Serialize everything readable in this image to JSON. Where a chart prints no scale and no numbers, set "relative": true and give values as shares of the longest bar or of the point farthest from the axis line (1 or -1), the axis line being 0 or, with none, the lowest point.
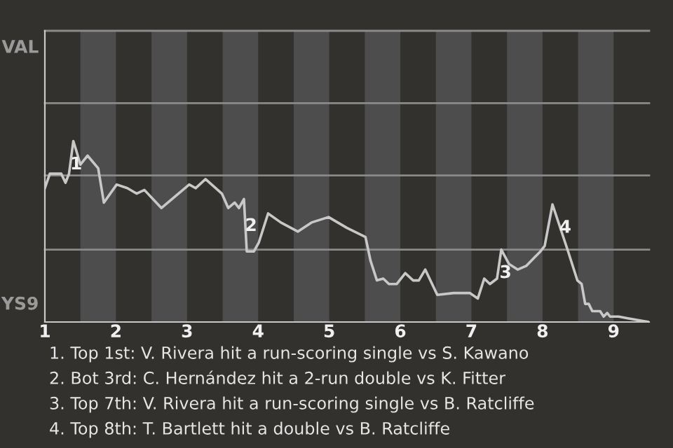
{
  "chart_data": {
    "type": "line",
    "relative": true,
    "x": [
      1.0,
      1.07,
      1.23,
      1.29,
      1.34,
      1.4,
      1.44,
      1.5,
      1.6,
      1.75,
      1.83,
      2.01,
      2.16,
      2.29,
      2.4,
      2.64,
      3.03,
      3.12,
      3.26,
      3.49,
      3.58,
      3.67,
      3.73,
      3.8,
      3.84,
      3.94,
      4.01,
      4.14,
      4.32,
      4.56,
      4.75,
      4.99,
      5.25,
      5.51,
      5.58,
      5.67,
      5.76,
      5.84,
      5.95,
      6.07,
      6.18,
      6.26,
      6.35,
      6.52,
      6.75,
      6.98,
      7.09,
      7.18,
      7.26,
      7.36,
      7.42,
      7.53,
      7.65,
      7.77,
      7.97,
      8.03,
      8.14,
      8.36,
      8.49,
      8.55,
      8.6,
      8.65,
      8.7,
      8.81,
      8.86,
      8.91,
      8.95,
      9.07,
      9.2,
      9.49
    ],
    "series": [
      {
        "color": "#c8c8c8",
        "values": [
          0.74,
          0.82,
          0.82,
          0.77,
          0.82,
          1,
          0.95,
          0.87,
          0.92,
          0.85,
          0.66,
          0.76,
          0.74,
          0.71,
          0.73,
          0.63,
          0.76,
          0.74,
          0.79,
          0.71,
          0.63,
          0.66,
          0.63,
          0.68,
          0.39,
          0.39,
          0.44,
          0.6,
          0.55,
          0.5,
          0.55,
          0.58,
          0.52,
          0.47,
          0.34,
          0.23,
          0.24,
          0.21,
          0.21,
          0.27,
          0.23,
          0.23,
          0.29,
          0.15,
          0.16,
          0.16,
          0.13,
          0.24,
          0.21,
          0.24,
          0.4,
          0.32,
          0.29,
          0.31,
          0.39,
          0.42,
          0.65,
          0.39,
          0.23,
          0.21,
          0.1,
          0.1,
          0.06,
          0.06,
          0.03,
          0.05,
          0.03,
          0.03,
          0.02,
          0
        ]
      }
    ],
    "xlim": [
      1,
      9.5
    ],
    "xticks": [
      1,
      2,
      3,
      4,
      5,
      6,
      7,
      8,
      9
    ],
    "ref_lines": [
      {
        "axis": "y",
        "value": 0.4,
        "color": "#8a8a8a"
      },
      {
        "axis": "y",
        "value": 0.81,
        "color": "#8a8a8a"
      },
      {
        "axis": "y",
        "value": 1.21,
        "color": "#8a8a8a"
      },
      {
        "axis": "y",
        "value": 1.61,
        "color": "#8a8a8a"
      }
    ],
    "bands": [
      {
        "axis": "x",
        "from": 1.5,
        "to": 2,
        "color": "#4d4d4d"
      },
      {
        "axis": "x",
        "from": 2.5,
        "to": 3,
        "color": "#4d4d4d"
      },
      {
        "axis": "x",
        "from": 3.5,
        "to": 4,
        "color": "#4d4d4d"
      },
      {
        "axis": "x",
        "from": 4.5,
        "to": 5,
        "color": "#4d4d4d"
      },
      {
        "axis": "x",
        "from": 5.5,
        "to": 6,
        "color": "#4d4d4d"
      },
      {
        "axis": "x",
        "from": 6.5,
        "to": 7,
        "color": "#4d4d4d"
      },
      {
        "axis": "x",
        "from": 7.5,
        "to": 8,
        "color": "#4d4d4d"
      },
      {
        "axis": "x",
        "from": 8.5,
        "to": 9,
        "color": "#4d4d4d"
      }
    ],
    "annotations": [
      "VAL",
      "YS9",
      {
        "text": "1",
        "x": 1.44,
        "y": 0.87
      },
      {
        "text": "2",
        "x": 3.9,
        "y": 0.53
      },
      {
        "text": "3",
        "x": 7.48,
        "y": 0.27
      },
      {
        "text": "4",
        "x": 8.32,
        "y": 0.52
      },
      "1. Top 1st: V. Rivera hit a run-scoring single vs S. Kawano",
      "2. Bot 3rd: C. Hernández hit a 2-run double vs K. Fitter",
      "3. Top 7th: V. Rivera hit a run-scoring single vs B. Ratcliffe",
      "4. Top 8th: T. Bartlett hit a double vs B. Ratcliffe"
    ]
  }
}
